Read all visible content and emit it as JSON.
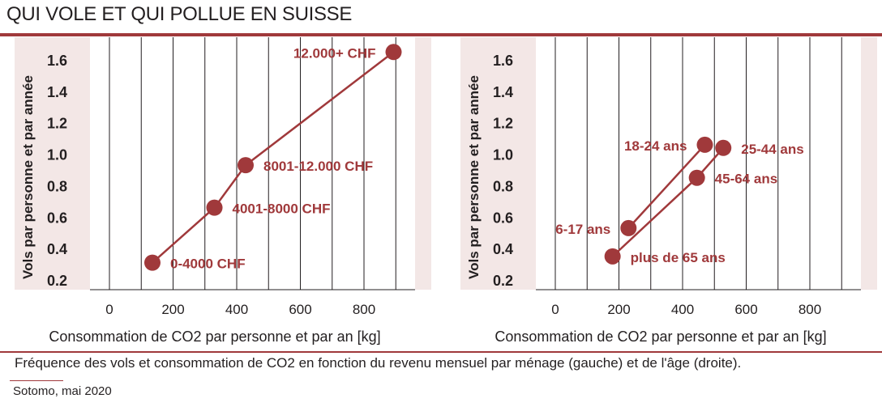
{
  "title": "QUI VOLE ET QUI POLLUE EN SUISSE",
  "caption": "Fréquence des vols et consommation de CO2 en fonction du revenu mensuel par ménage (gauche) et de l'âge (droite).",
  "source": "Sotomo, mai 2020",
  "colors": {
    "accent": "#a0393b",
    "band": "#f3e7e6",
    "grid": "#231f20"
  },
  "chart_data": [
    {
      "type": "line",
      "xlabel": "Consommation de CO2 par personne et par an [kg]",
      "ylabel": "Vols par personne et par année",
      "xlim": [
        -140,
        1000
      ],
      "ylim": [
        0.12,
        1.72
      ],
      "xticks": [
        0,
        200,
        400,
        600,
        800
      ],
      "yticks": [
        "0.2",
        "0.4",
        "0.6",
        "0.8",
        "1.0",
        "1.2",
        "1.4",
        "1.6"
      ],
      "series": [
        {
          "points": [
            {
              "label": "0-4000 CHF",
              "x": 135,
              "y": 0.31,
              "pos": "right"
            },
            {
              "label": "4001-8000 CHF",
              "x": 330,
              "y": 0.66,
              "pos": "right"
            },
            {
              "label": "8001-12.000 CHF",
              "x": 428,
              "y": 0.93,
              "pos": "right"
            },
            {
              "label": "12.000+ CHF",
              "x": 893,
              "y": 1.65,
              "pos": "left"
            }
          ]
        }
      ]
    },
    {
      "type": "line",
      "xlabel": "Consommation de CO2 par personne et par an [kg]",
      "ylabel": "Vols par personne et par année",
      "xlim": [
        -140,
        1000
      ],
      "ylim": [
        0.12,
        1.72
      ],
      "xticks": [
        0,
        200,
        400,
        600,
        800
      ],
      "yticks": [
        "0.2",
        "0.4",
        "0.6",
        "0.8",
        "1.0",
        "1.2",
        "1.4",
        "1.6"
      ],
      "series": [
        {
          "points": [
            {
              "label": "6-17 ans",
              "x": 230,
              "y": 0.53,
              "pos": "left"
            },
            {
              "label": "18-24 ans",
              "x": 470,
              "y": 1.06,
              "pos": "left"
            }
          ]
        },
        {
          "points": [
            {
              "label": "plus de 65 ans",
              "x": 180,
              "y": 0.35,
              "pos": "right"
            },
            {
              "label": "45-64 ans",
              "x": 445,
              "y": 0.85,
              "pos": "right"
            },
            {
              "label": "25-44 ans",
              "x": 528,
              "y": 1.04,
              "pos": "right"
            }
          ]
        }
      ]
    }
  ]
}
